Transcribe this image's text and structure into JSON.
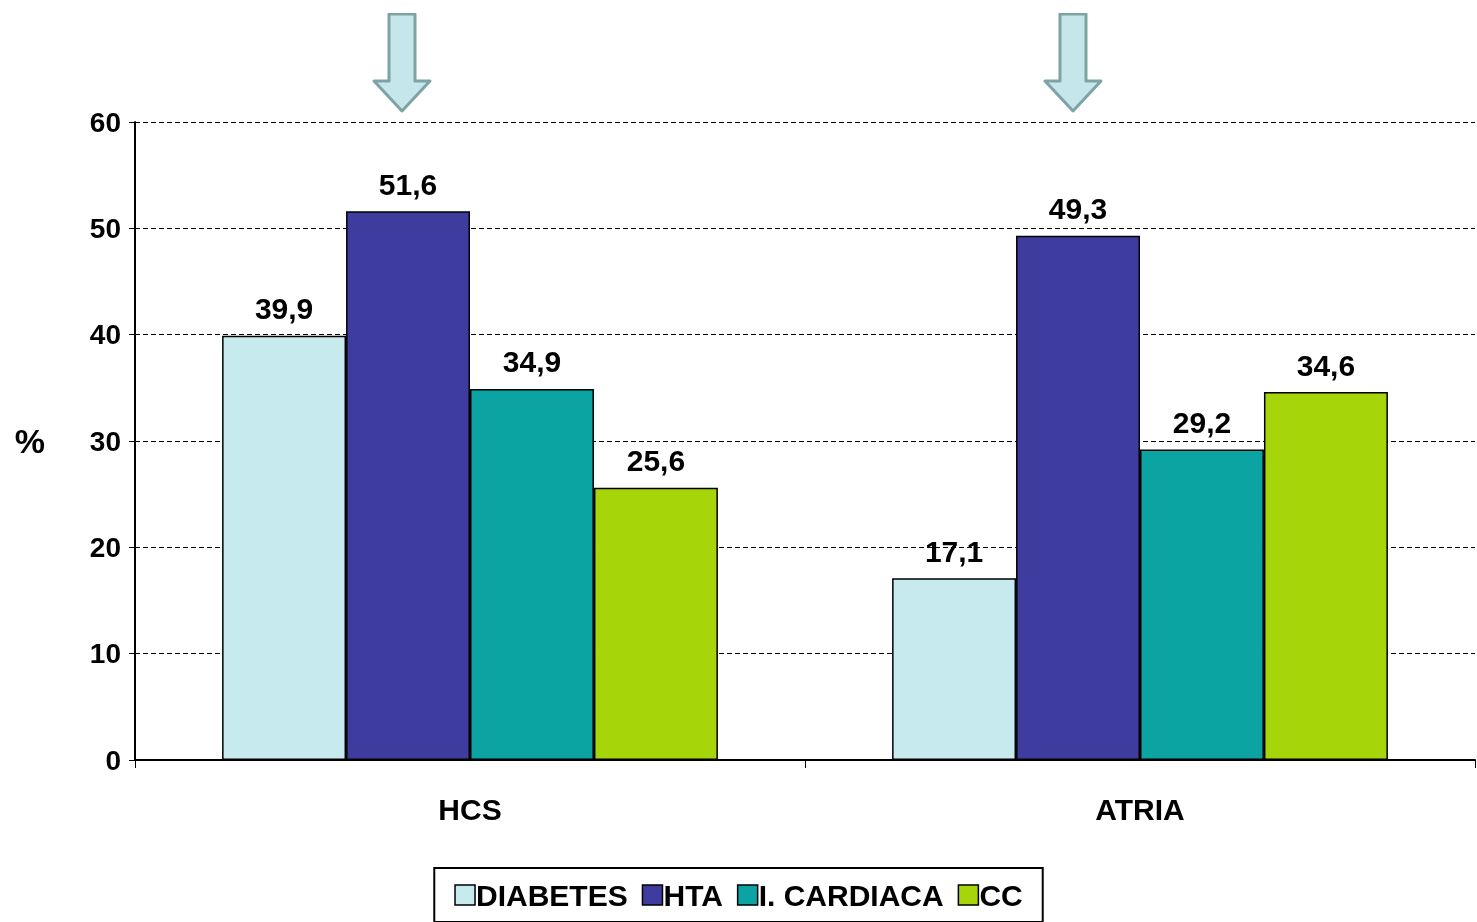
{
  "chart_data": {
    "type": "bar",
    "ylabel": "%",
    "categories": [
      "HCS",
      "ATRIA"
    ],
    "series": [
      {
        "name": "DIABETES",
        "color": "#c6eaee",
        "values": [
          39.9,
          17.1
        ],
        "value_labels": [
          "39,9",
          "17,1"
        ]
      },
      {
        "name": "HTA",
        "color": "#3f3ca0",
        "values": [
          51.6,
          49.3
        ],
        "value_labels": [
          "51,6",
          "49,3"
        ]
      },
      {
        "name": "I. CARDIACA",
        "color": "#0ca3a3",
        "values": [
          34.9,
          29.2
        ],
        "value_labels": [
          "34,9",
          "29,2"
        ]
      },
      {
        "name": "CC",
        "color": "#a6d60a",
        "values": [
          25.6,
          34.6
        ],
        "value_labels": [
          "25,6",
          "34,6"
        ]
      }
    ],
    "ylim": [
      0,
      60
    ],
    "yticks": [
      0,
      10,
      20,
      30,
      40,
      50,
      60
    ],
    "grid": "y",
    "legend": "bottom"
  }
}
